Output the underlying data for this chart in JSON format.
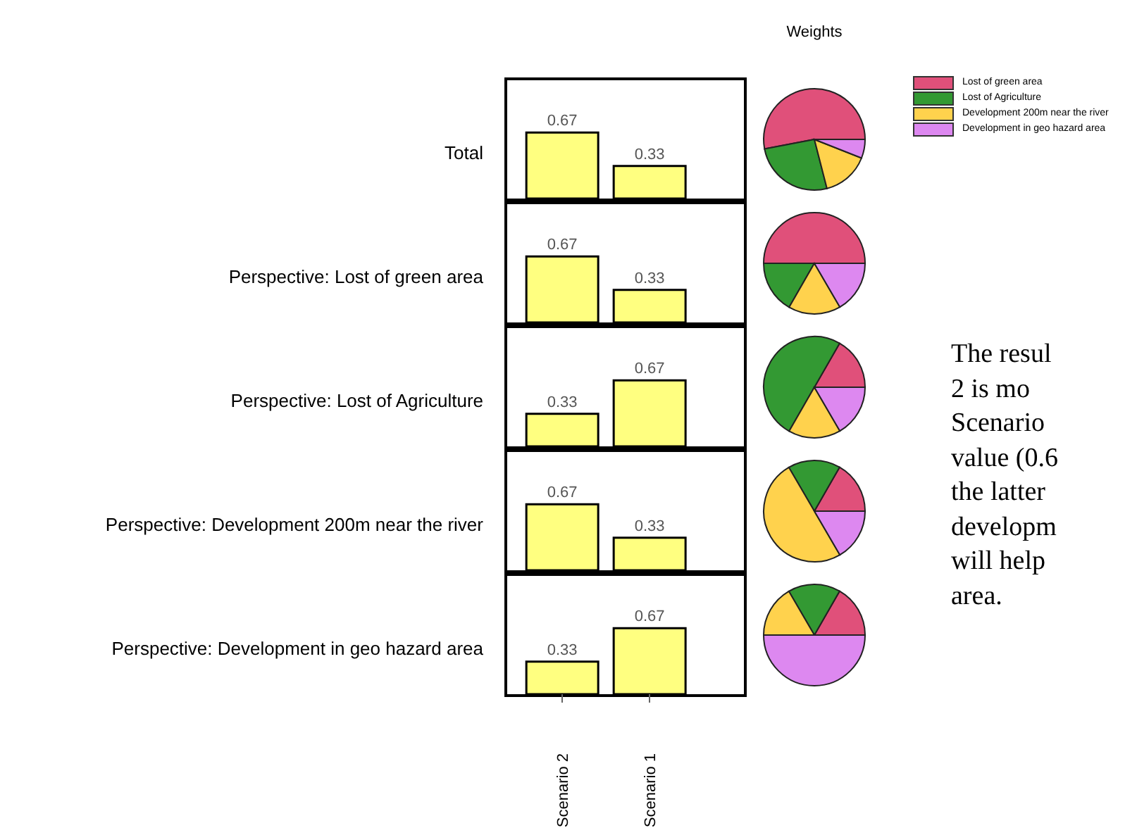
{
  "chart_data": [
    {
      "type": "bar",
      "title": "Total",
      "categories": [
        null,
        null
      ],
      "values": [
        0.67,
        0.33
      ],
      "color": "#ffff80",
      "data_labels": true,
      "tick_labels": false
    },
    {
      "type": "pie",
      "title": "Weights",
      "categories": [
        "Lost of green area",
        "Lost of Agriculture",
        "Development 200m near the river",
        "Development in geo hazard area"
      ],
      "values": [
        53,
        26,
        15,
        6
      ],
      "colors": [
        "#e0507a",
        "#339933",
        "#ffd24d",
        "#dd88f0"
      ],
      "legend": "right"
    },
    {
      "type": "bar",
      "title": "Perspective: Lost of green area",
      "categories": [
        null,
        null
      ],
      "values": [
        0.67,
        0.33
      ],
      "color": "#ffff80",
      "data_labels": true,
      "tick_labels": false
    },
    {
      "type": "pie",
      "categories": [
        null,
        null,
        null,
        null
      ],
      "values": [
        50,
        16.7,
        16.7,
        16.6
      ],
      "colors": [
        "#e0507a",
        "#339933",
        "#ffd24d",
        "#dd88f0"
      ]
    },
    {
      "type": "bar",
      "title": "Perspective: Lost of Agriculture",
      "categories": [
        null,
        null
      ],
      "values": [
        0.33,
        0.67
      ],
      "color": "#ffff80",
      "data_labels": true,
      "tick_labels": false
    },
    {
      "type": "pie",
      "categories": [
        null,
        null,
        null,
        null
      ],
      "values": [
        16.7,
        50,
        16.7,
        16.6
      ],
      "colors": [
        "#e0507a",
        "#339933",
        "#ffd24d",
        "#dd88f0"
      ]
    },
    {
      "type": "bar",
      "title": "Perspective: Development 200m near the river",
      "categories": [
        null,
        null
      ],
      "values": [
        0.67,
        0.33
      ],
      "color": "#ffff80",
      "data_labels": true,
      "tick_labels": false
    },
    {
      "type": "pie",
      "categories": [
        null,
        null,
        null,
        null
      ],
      "values": [
        16.7,
        16.7,
        50,
        16.6
      ],
      "colors": [
        "#e0507a",
        "#339933",
        "#ffd24d",
        "#dd88f0"
      ]
    },
    {
      "type": "bar",
      "title": "Perspective: Development in geo hazard area",
      "categories": [
        "Scenario 2",
        "Scenario 1"
      ],
      "values": [
        0.33,
        0.67
      ],
      "color": "#ffff80",
      "data_labels": true,
      "tick_labels": "x"
    },
    {
      "type": "pie",
      "categories": [
        null,
        null,
        null,
        null
      ],
      "values": [
        16.7,
        16.7,
        16.6,
        50
      ],
      "colors": [
        "#e0507a",
        "#339933",
        "#ffd24d",
        "#dd88f0"
      ]
    },
    {
      "type": "other",
      "annotations": [
        "The resul",
        "2 is mo",
        "Scenario",
        "value (0.6",
        "the latter",
        "developm",
        "will help",
        "area."
      ]
    }
  ]
}
